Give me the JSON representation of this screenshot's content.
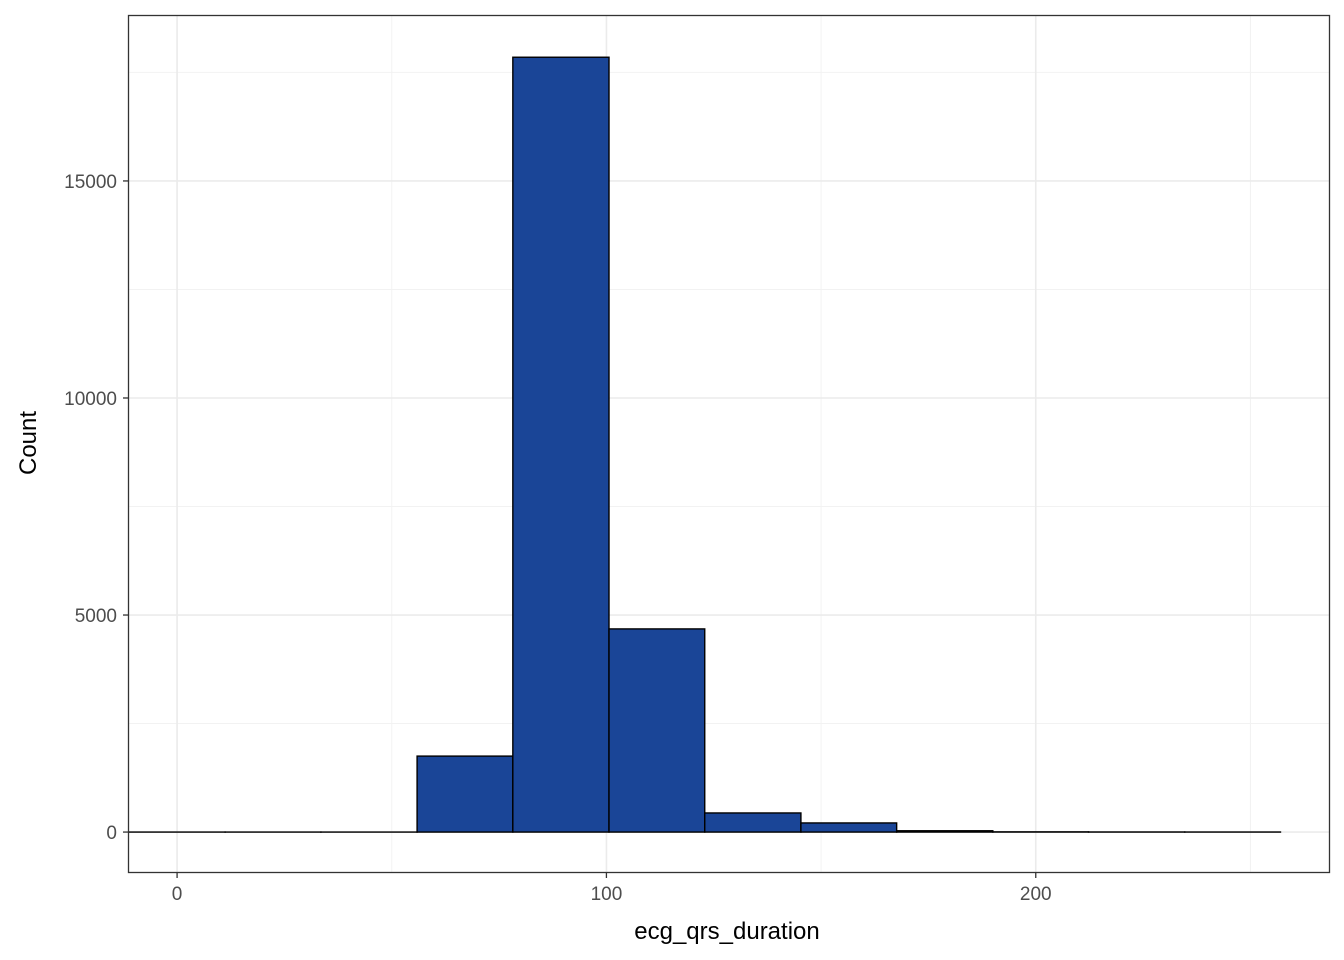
{
  "chart_data": {
    "type": "bar",
    "title": "",
    "xlabel": "ecg_qrs_duration",
    "ylabel": "Count",
    "xlim": [
      -11.2,
      268.3
    ],
    "ylim": [
      -920,
      18800
    ],
    "x_ticks": [
      0,
      100,
      200
    ],
    "x_tick_labels": [
      "0",
      "100",
      "200"
    ],
    "y_ticks": [
      0,
      5000,
      10000,
      15000
    ],
    "y_tick_labels": [
      "0",
      "5000",
      "10000",
      "15000"
    ],
    "grid": true,
    "legend": "none",
    "bins": [
      {
        "x0": -11.2,
        "x1": 11.2,
        "count": 0
      },
      {
        "x0": 11.2,
        "x1": 33.5,
        "count": 0
      },
      {
        "x0": 33.5,
        "x1": 55.9,
        "count": 0
      },
      {
        "x0": 55.9,
        "x1": 78.2,
        "count": 1750
      },
      {
        "x0": 78.2,
        "x1": 100.6,
        "count": 17850
      },
      {
        "x0": 100.6,
        "x1": 122.9,
        "count": 4680
      },
      {
        "x0": 122.9,
        "x1": 145.3,
        "count": 440
      },
      {
        "x0": 145.3,
        "x1": 167.6,
        "count": 210
      },
      {
        "x0": 167.6,
        "x1": 190.0,
        "count": 30
      },
      {
        "x0": 190.0,
        "x1": 212.3,
        "count": 5
      },
      {
        "x0": 212.3,
        "x1": 234.7,
        "count": 2
      },
      {
        "x0": 234.7,
        "x1": 257.0,
        "count": 1
      }
    ]
  },
  "colors": {
    "bar_fill": "#1a4597",
    "bar_stroke": "#000000",
    "grid_major": "#ebebeb",
    "grid_minor": "#f2f2f2",
    "panel_border": "#333333",
    "tick_text": "#4d4d4d"
  }
}
